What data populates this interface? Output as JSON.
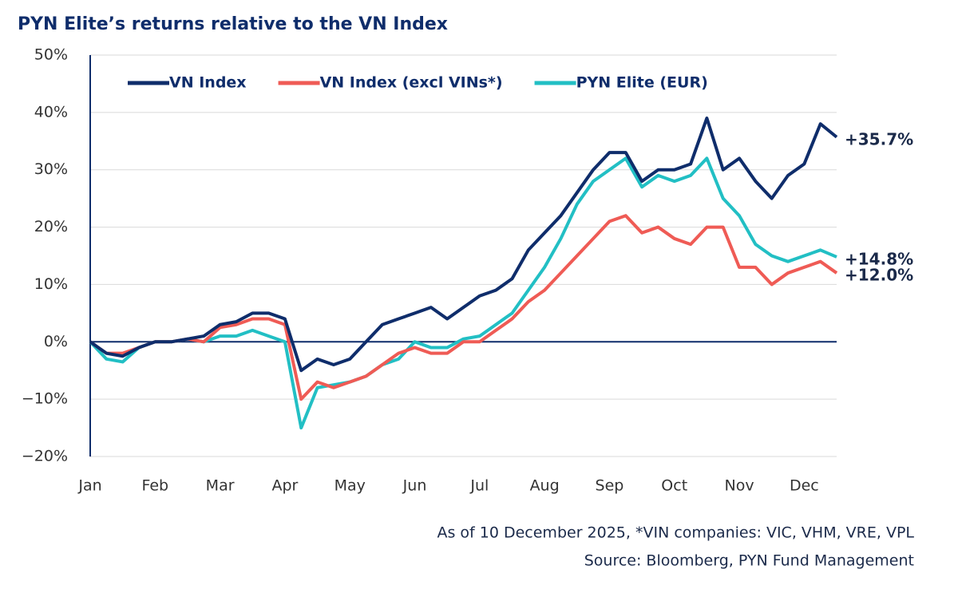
{
  "chart_data": {
    "type": "line",
    "title": "PYN Elite’s returns relative to the VN Index",
    "notes": [
      "As of 10 December 2025, *VIN companies: VIC, VHM, VRE, VPL",
      "Source: Bloomberg, PYN Fund Management"
    ],
    "categories": [
      "Jan",
      null,
      null,
      null,
      "Feb",
      null,
      null,
      null,
      "Mar",
      null,
      null,
      null,
      "Apr",
      null,
      null,
      null,
      "May",
      null,
      null,
      null,
      "Jun",
      null,
      null,
      null,
      "Jul",
      null,
      null,
      null,
      "Aug",
      null,
      null,
      null,
      "Sep",
      null,
      null,
      null,
      "Oct",
      null,
      null,
      null,
      "Nov",
      null,
      null,
      null,
      "Dec",
      null,
      null
    ],
    "series": [
      {
        "name": "VN Index",
        "color": "#0f2d6b",
        "values": [
          0,
          -2,
          -2.5,
          -1,
          0,
          0,
          0.5,
          1,
          3,
          3.5,
          5,
          5,
          4,
          -5,
          -3,
          -4,
          -3,
          0,
          3,
          4,
          5,
          6,
          4,
          6,
          8,
          9,
          11,
          16,
          19,
          22,
          26,
          30,
          33,
          33,
          28,
          30,
          30,
          31,
          39,
          30,
          32,
          28,
          25,
          29,
          31,
          38,
          35.7
        ],
        "value_labels": [
          null,
          null,
          null,
          null,
          null,
          null,
          null,
          null,
          null,
          null,
          null,
          null,
          null,
          null,
          null,
          null,
          null,
          null,
          null,
          null,
          null,
          null,
          null,
          null,
          null,
          null,
          null,
          null,
          null,
          null,
          null,
          null,
          null,
          null,
          null,
          null,
          null,
          null,
          null,
          null,
          null,
          null,
          null,
          null,
          null,
          null,
          "+35.7%"
        ]
      },
      {
        "name": "VN Index (excl VINs*)",
        "color": "#ef5b55",
        "values": [
          0,
          -2,
          -2,
          -1,
          0,
          0,
          0.5,
          0,
          2.5,
          3,
          4,
          4,
          3,
          -10,
          -7,
          -8,
          -7,
          -6,
          -4,
          -2,
          -1,
          -2,
          -2,
          0,
          0,
          2,
          4,
          7,
          9,
          12,
          15,
          18,
          21,
          22,
          19,
          20,
          18,
          17,
          20,
          20,
          13,
          13,
          10,
          12,
          13,
          14,
          12.0
        ],
        "value_labels": [
          null,
          null,
          null,
          null,
          null,
          null,
          null,
          null,
          null,
          null,
          null,
          null,
          null,
          null,
          null,
          null,
          null,
          null,
          null,
          null,
          null,
          null,
          null,
          null,
          null,
          null,
          null,
          null,
          null,
          null,
          null,
          null,
          null,
          null,
          null,
          null,
          null,
          null,
          null,
          null,
          null,
          null,
          null,
          null,
          null,
          null,
          "+12.0%"
        ]
      },
      {
        "name": "PYN Elite (EUR)",
        "color": "#22bfc4",
        "values": [
          0,
          -3,
          -3.5,
          -1,
          0,
          0,
          0.5,
          0,
          1,
          1,
          2,
          1,
          0,
          -15,
          -8,
          -7.5,
          -7,
          -6,
          -4,
          -3,
          0,
          -1,
          -1,
          0.5,
          1,
          3,
          5,
          9,
          13,
          18,
          24,
          28,
          30,
          32,
          27,
          29,
          28,
          29,
          32,
          25,
          22,
          17,
          15,
          14,
          15,
          16,
          14.8
        ],
        "value_labels": [
          null,
          null,
          null,
          null,
          null,
          null,
          null,
          null,
          null,
          null,
          null,
          null,
          null,
          null,
          null,
          null,
          null,
          null,
          null,
          null,
          null,
          null,
          null,
          null,
          null,
          null,
          null,
          null,
          null,
          null,
          null,
          null,
          null,
          null,
          null,
          null,
          null,
          null,
          null,
          null,
          null,
          null,
          null,
          null,
          null,
          null,
          "+14.8%"
        ]
      }
    ],
    "ylim": [
      -20,
      50
    ],
    "yticks": [
      {
        "value": -20,
        "label": "−20%"
      },
      {
        "value": -10,
        "label": "−10%"
      },
      {
        "value": 0,
        "label": "0%"
      },
      {
        "value": 10,
        "label": "10%"
      },
      {
        "value": 20,
        "label": "20%"
      },
      {
        "value": 30,
        "label": "30%"
      },
      {
        "value": 40,
        "label": "40%"
      },
      {
        "value": 50,
        "label": "50%"
      }
    ],
    "grid": true
  }
}
